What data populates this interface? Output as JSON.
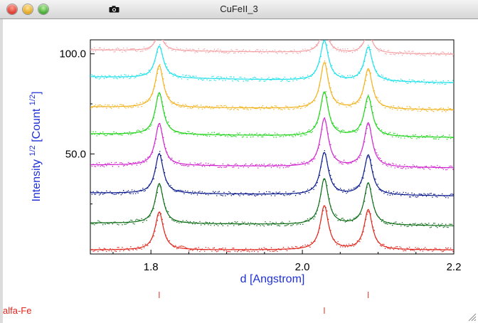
{
  "window": {
    "title": "CuFeII_3"
  },
  "icons": {
    "close": "close-button-icon",
    "minimize": "minimize-button-icon",
    "zoom": "zoom-button-icon",
    "camera": "camera-icon",
    "resize": "resize-grip-icon"
  },
  "phase_label": "alfa-Fe",
  "chart_data": {
    "type": "line",
    "title": "",
    "xlabel": "d [Angstrom]",
    "ylabel": "Intensity 1/2 [Count 1/2]",
    "xlim": [
      1.72,
      2.2
    ],
    "ylim": [
      0,
      107
    ],
    "xticks": [
      {
        "value": 1.8,
        "label": "1.8"
      },
      {
        "value": 2.0,
        "label": "2.0"
      },
      {
        "value": 2.2,
        "label": "2.2"
      }
    ],
    "yticks": [
      {
        "value": 50,
        "label": "50.0"
      },
      {
        "value": 100,
        "label": "100.0"
      }
    ],
    "peaks": [
      1.811,
      2.029,
      2.087
    ],
    "phase_marks": [
      1.811,
      2.029,
      2.087
    ],
    "series": [
      {
        "color": "#e0251b",
        "baseline": 2.0,
        "slope": 0.0,
        "heights": [
          19,
          22,
          20
        ]
      },
      {
        "color": "#0d6d17",
        "baseline": 15.5,
        "slope": -1.5,
        "heights": [
          20,
          23,
          21
        ]
      },
      {
        "color": "#0a1a8c",
        "baseline": 30.5,
        "slope": -1.5,
        "heights": [
          20,
          21,
          20
        ]
      },
      {
        "color": "#d126cf",
        "baseline": 44.5,
        "slope": -1.5,
        "heights": [
          21,
          24,
          22
        ]
      },
      {
        "color": "#22d41c",
        "baseline": 60.0,
        "slope": -1.8,
        "heights": [
          21,
          22,
          20
        ]
      },
      {
        "color": "#f2b31f",
        "baseline": 73.5,
        "slope": -1.5,
        "heights": [
          21,
          23,
          20
        ]
      },
      {
        "color": "#1ee2eb",
        "baseline": 88.5,
        "slope": -3.0,
        "heights": [
          16,
          20,
          17
        ]
      },
      {
        "color": "#f4a2a6",
        "baseline": 102.0,
        "slope": -2.2,
        "heights": [
          8,
          12,
          10
        ]
      }
    ]
  }
}
